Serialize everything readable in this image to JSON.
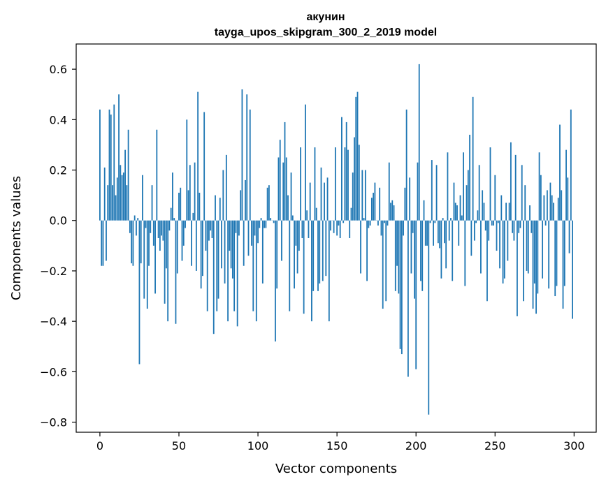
{
  "chart_data": {
    "type": "bar",
    "title": "акунин",
    "subtitle": "tayga_upos_skipgram_300_2_2019 model",
    "xlabel": "Vector components",
    "ylabel": "Components values",
    "xlim": [
      -15,
      314
    ],
    "ylim": [
      -0.84,
      0.7
    ],
    "xticks": [
      0,
      50,
      100,
      150,
      200,
      250,
      300
    ],
    "yticks": [
      -0.8,
      -0.6,
      -0.4,
      -0.2,
      0.0,
      0.2,
      0.4,
      0.6
    ],
    "ytick_labels": [
      "−0.8",
      "−0.6",
      "−0.4",
      "−0.2",
      "0.0",
      "0.2",
      "0.4",
      "0.6"
    ],
    "grid": false,
    "bar_color": "#1f77b4",
    "values": [
      0.44,
      -0.18,
      -0.18,
      0.21,
      -0.16,
      0.14,
      0.44,
      0.42,
      0.14,
      0.46,
      0.1,
      0.17,
      0.5,
      0.22,
      0.18,
      0.19,
      0.28,
      0.14,
      0.36,
      -0.05,
      -0.17,
      -0.18,
      0.02,
      -0.06,
      0.01,
      -0.57,
      -0.17,
      0.18,
      -0.31,
      -0.03,
      -0.35,
      -0.18,
      -0.05,
      0.14,
      -0.1,
      -0.29,
      0.36,
      -0.07,
      -0.12,
      -0.06,
      -0.08,
      -0.33,
      -0.19,
      -0.4,
      -0.04,
      0.05,
      0.19,
      0.01,
      -0.41,
      -0.21,
      0.11,
      0.13,
      -0.16,
      -0.1,
      -0.03,
      0.4,
      0.12,
      0.22,
      -0.18,
      0.03,
      0.23,
      -0.2,
      0.51,
      0.11,
      -0.27,
      -0.22,
      0.43,
      -0.12,
      -0.36,
      -0.08,
      -0.04,
      -0.07,
      -0.45,
      0.1,
      -0.36,
      -0.31,
      0.09,
      -0.19,
      0.2,
      -0.25,
      0.26,
      -0.4,
      -0.12,
      -0.19,
      -0.23,
      -0.36,
      -0.05,
      -0.42,
      -0.06,
      0.12,
      0.52,
      -0.18,
      0.16,
      0.5,
      -0.14,
      0.44,
      -0.1,
      -0.36,
      -0.06,
      -0.4,
      -0.09,
      -0.03,
      0.01,
      -0.25,
      -0.03,
      -0.03,
      0.13,
      0.14,
      0.01,
      0.0,
      -0.01,
      -0.48,
      -0.27,
      0.25,
      0.32,
      -0.16,
      0.23,
      0.39,
      0.25,
      0.1,
      -0.36,
      0.19,
      0.02,
      -0.27,
      -0.1,
      -0.21,
      -0.12,
      0.29,
      -0.07,
      -0.37,
      0.46,
      0.04,
      -0.07,
      0.15,
      -0.4,
      -0.28,
      0.29,
      0.05,
      -0.28,
      -0.25,
      0.21,
      -0.24,
      0.15,
      -0.22,
      0.17,
      -0.4,
      -0.04,
      0.0,
      -0.05,
      0.29,
      -0.06,
      -0.02,
      -0.07,
      0.41,
      -0.01,
      0.29,
      0.39,
      0.28,
      -0.07,
      0.05,
      0.19,
      0.33,
      0.49,
      0.51,
      0.3,
      -0.21,
      0.2,
      0.01,
      0.2,
      -0.24,
      -0.03,
      -0.02,
      0.09,
      0.11,
      0.15,
      0.0,
      -0.02,
      0.13,
      -0.06,
      -0.35,
      -0.01,
      -0.32,
      -0.02,
      0.23,
      0.07,
      0.08,
      0.06,
      -0.28,
      -0.18,
      -0.29,
      -0.51,
      -0.53,
      -0.06,
      0.13,
      0.44,
      -0.62,
      0.17,
      -0.21,
      -0.05,
      -0.31,
      -0.59,
      0.23,
      0.62,
      -0.24,
      -0.28,
      0.08,
      -0.1,
      -0.1,
      -0.77,
      -0.01,
      0.24,
      -0.1,
      -0.01,
      0.22,
      -0.09,
      -0.11,
      -0.23,
      0.01,
      -0.09,
      -0.19,
      0.27,
      -0.08,
      0.01,
      -0.24,
      0.15,
      0.07,
      0.06,
      -0.1,
      0.1,
      0.02,
      0.27,
      -0.26,
      0.14,
      0.2,
      0.34,
      -0.14,
      0.49,
      -0.08,
      -0.01,
      0.04,
      0.22,
      -0.21,
      0.12,
      0.07,
      -0.04,
      -0.32,
      -0.08,
      0.29,
      -0.02,
      -0.02,
      0.18,
      -0.12,
      -0.01,
      -0.19,
      0.1,
      -0.25,
      -0.23,
      0.07,
      -0.16,
      0.07,
      0.31,
      -0.05,
      -0.08,
      0.26,
      -0.38,
      -0.05,
      -0.03,
      0.22,
      -0.32,
      0.14,
      -0.2,
      -0.21,
      0.06,
      -0.05,
      -0.35,
      -0.25,
      -0.37,
      -0.29,
      0.27,
      0.18,
      -0.23,
      0.1,
      -0.02,
      0.12,
      -0.27,
      0.15,
      0.1,
      0.07,
      -0.3,
      -0.26,
      0.09,
      0.38,
      0.12,
      -0.35,
      -0.26,
      0.28,
      0.17,
      -0.13,
      0.44,
      -0.39
    ]
  }
}
